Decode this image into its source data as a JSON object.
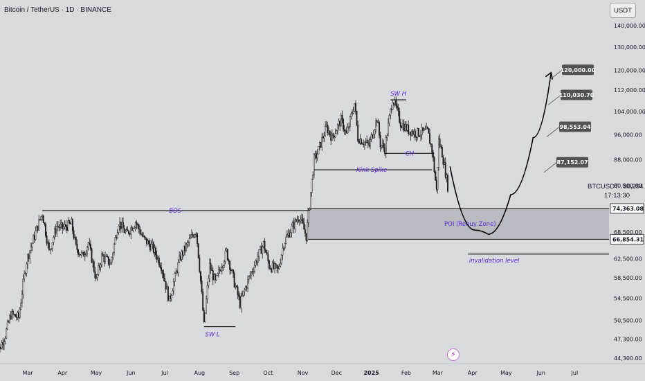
{
  "header": {
    "symbol_title": "Bitcoin / TetherUS · 1D · BINANCE",
    "currency": "USDT"
  },
  "live_price": {
    "ticker": "BTCUSDT",
    "price": "80,294.38",
    "countdown": "17:13:30"
  },
  "event_icon": "lightning-icon",
  "colors": {
    "background": "#d9dadd",
    "candle": "#1e1e1e",
    "annotation_text": "#5b2bd6",
    "poi_zone": "#b3b5bc",
    "price_tag": "#4f5257"
  },
  "chart_data": {
    "type": "candlestick",
    "y_scale": "log",
    "ylim": [
      43500,
      148000
    ],
    "x_tick_labels": [
      "Mar",
      "Apr",
      "May",
      "Jun",
      "Jul",
      "Aug",
      "Sep",
      "Oct",
      "Nov",
      "Dec",
      "2025",
      "Feb",
      "Mar",
      "Apr",
      "May",
      "Jun",
      "Jul"
    ],
    "y_tick_labels": [
      {
        "value": 140000,
        "label": "140,000.00"
      },
      {
        "value": 130000,
        "label": "130,000.00"
      },
      {
        "value": 120000,
        "label": "120,000.00"
      },
      {
        "value": 112000,
        "label": "112,000.00"
      },
      {
        "value": 104000,
        "label": "104,000.00"
      },
      {
        "value": 96000,
        "label": "96,000.00"
      },
      {
        "value": 88000,
        "label": "88,000.00"
      },
      {
        "value": 80500,
        "label": "80,500.00"
      },
      {
        "value": 68500,
        "label": "68,500.00"
      },
      {
        "value": 62500,
        "label": "62,500.00"
      },
      {
        "value": 58500,
        "label": "58,500.00"
      },
      {
        "value": 54500,
        "label": "54,500.00"
      },
      {
        "value": 50500,
        "label": "50,500.00"
      },
      {
        "value": 47300,
        "label": "47,300.00"
      },
      {
        "value": 44300,
        "label": "44,300.00"
      }
    ],
    "series_path_points": [
      [
        "2024-02-01",
        44000
      ],
      [
        "2024-02-10",
        48000
      ],
      [
        "2024-02-15",
        51500
      ],
      [
        "2024-02-22",
        51000
      ],
      [
        "2024-02-29",
        62000
      ],
      [
        "2024-03-05",
        66000
      ],
      [
        "2024-03-14",
        73200
      ],
      [
        "2024-03-20",
        64000
      ],
      [
        "2024-03-27",
        70000
      ],
      [
        "2024-04-01",
        69500
      ],
      [
        "2024-04-09",
        70500
      ],
      [
        "2024-04-13",
        65000
      ],
      [
        "2024-04-19",
        63000
      ],
      [
        "2024-04-24",
        66000
      ],
      [
        "2024-05-01",
        58000
      ],
      [
        "2024-05-06",
        63000
      ],
      [
        "2024-05-14",
        61500
      ],
      [
        "2024-05-21",
        71000
      ],
      [
        "2024-05-28",
        68000
      ],
      [
        "2024-06-05",
        71000
      ],
      [
        "2024-06-12",
        67000
      ],
      [
        "2024-06-20",
        65000
      ],
      [
        "2024-06-28",
        61000
      ],
      [
        "2024-07-05",
        54000
      ],
      [
        "2024-07-15",
        63000
      ],
      [
        "2024-07-29",
        69000
      ],
      [
        "2024-08-05",
        49500
      ],
      [
        "2024-08-10",
        61000
      ],
      [
        "2024-08-15",
        57500
      ],
      [
        "2024-08-25",
        64000
      ],
      [
        "2024-09-01",
        57500
      ],
      [
        "2024-09-06",
        53500
      ],
      [
        "2024-09-15",
        59000
      ],
      [
        "2024-09-27",
        65800
      ],
      [
        "2024-10-02",
        61000
      ],
      [
        "2024-10-10",
        60000
      ],
      [
        "2024-10-15",
        66000
      ],
      [
        "2024-10-21",
        69000
      ],
      [
        "2024-10-29",
        72500
      ],
      [
        "2024-11-04",
        67500
      ],
      [
        "2024-11-07",
        75500
      ],
      [
        "2024-11-11",
        88000
      ],
      [
        "2024-11-14",
        90000
      ],
      [
        "2024-11-22",
        98500
      ],
      [
        "2024-11-27",
        95000
      ],
      [
        "2024-12-05",
        101000
      ],
      [
        "2024-12-10",
        96000
      ],
      [
        "2024-12-17",
        107000
      ],
      [
        "2024-12-20",
        95000
      ],
      [
        "2024-12-30",
        92500
      ],
      [
        "2025-01-06",
        101500
      ],
      [
        "2025-01-09",
        93000
      ],
      [
        "2025-01-13",
        91500
      ],
      [
        "2025-01-20",
        109000
      ],
      [
        "2025-01-27",
        100000
      ],
      [
        "2025-02-03",
        97500
      ],
      [
        "2025-02-10",
        96500
      ],
      [
        "2025-02-20",
        97000
      ],
      [
        "2025-02-24",
        91000
      ],
      [
        "2025-02-28",
        79000
      ],
      [
        "2025-03-02",
        94000
      ],
      [
        "2025-03-05",
        90000
      ],
      [
        "2025-03-10",
        80300
      ]
    ],
    "horizontal_levels": [
      {
        "label": "BOS",
        "price": 73800
      },
      {
        "label": "Kink Spike",
        "price": 85000
      },
      {
        "label": "CH",
        "price": 90000
      },
      {
        "label": "SW H",
        "price": 108300
      },
      {
        "label": "SW L",
        "price": 49400
      },
      {
        "label": "invalidation level",
        "price": 63500
      }
    ],
    "zone": {
      "label": "POI (Rebuy Zone)",
      "from": 66854.31,
      "to": 74363.08
    },
    "price_tags": [
      "74,363.08",
      "66,854.31"
    ],
    "projection_targets": [
      {
        "label": "120,000.00",
        "price": 120000
      },
      {
        "label": "110,030.70",
        "price": 110030.7
      },
      {
        "label": "98,553.04",
        "price": 98553.04
      },
      {
        "label": "87,152.07",
        "price": 87152.07
      }
    ],
    "projection_path": [
      [
        "2025-03-12",
        86000
      ],
      [
        "2025-04-03",
        69000
      ],
      [
        "2025-04-15",
        68000
      ],
      [
        "2025-05-05",
        78000
      ],
      [
        "2025-05-25",
        95000
      ],
      [
        "2025-06-10",
        119000
      ]
    ]
  }
}
